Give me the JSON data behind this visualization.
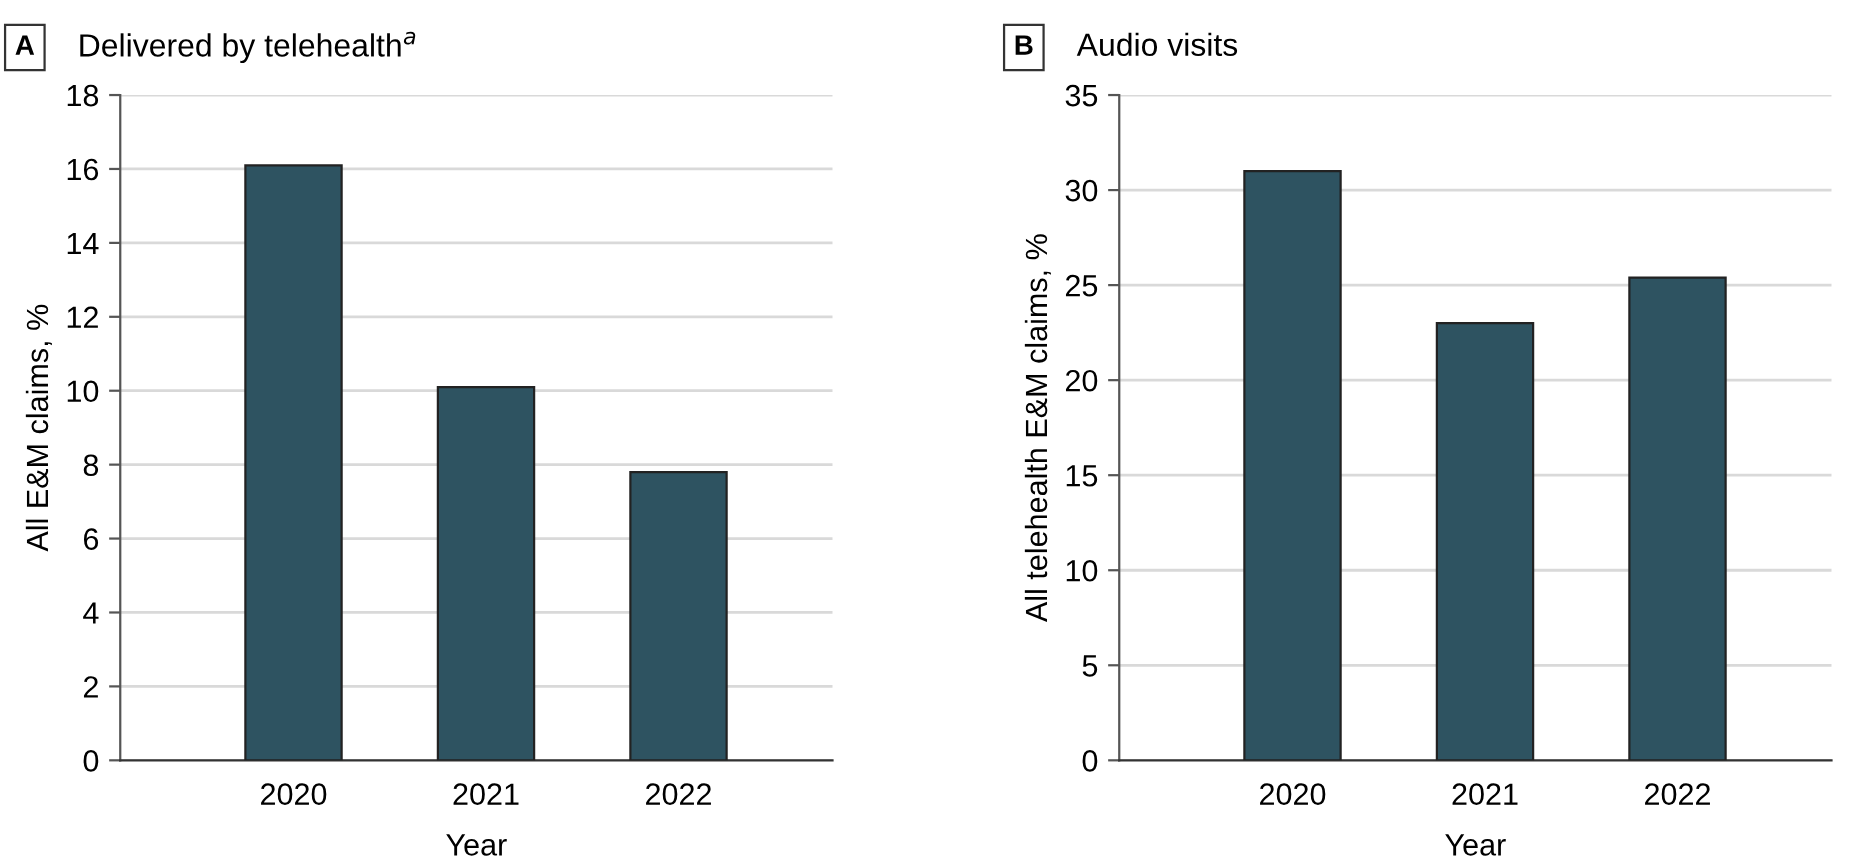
{
  "chart_data": [
    {
      "type": "bar",
      "title": "Delivered by telehealth$^{a}$",
      "annotations": [
        "A"
      ],
      "xlabel": "Year",
      "ylabel": "All E&M claims, %",
      "categories": [
        "2020",
        "2021",
        "2022"
      ],
      "values": [
        16.1,
        10.1,
        7.8
      ],
      "color": "#2e5361",
      "ylim": [
        0,
        18
      ],
      "yticks": [
        0,
        2,
        4,
        6,
        8,
        10,
        12,
        14,
        16,
        18
      ],
      "grid": "y"
    },
    {
      "type": "bar",
      "title": "Audio visits",
      "annotations": [
        "B"
      ],
      "xlabel": "Year",
      "ylabel": "All telehealth E&M claims, %",
      "categories": [
        "2020",
        "2021",
        "2022"
      ],
      "values": [
        31.0,
        23.0,
        25.4
      ],
      "color": "#2e5361",
      "ylim": [
        0,
        35
      ],
      "yticks": [
        0,
        5,
        10,
        15,
        20,
        25,
        30,
        35
      ],
      "grid": "y"
    }
  ]
}
